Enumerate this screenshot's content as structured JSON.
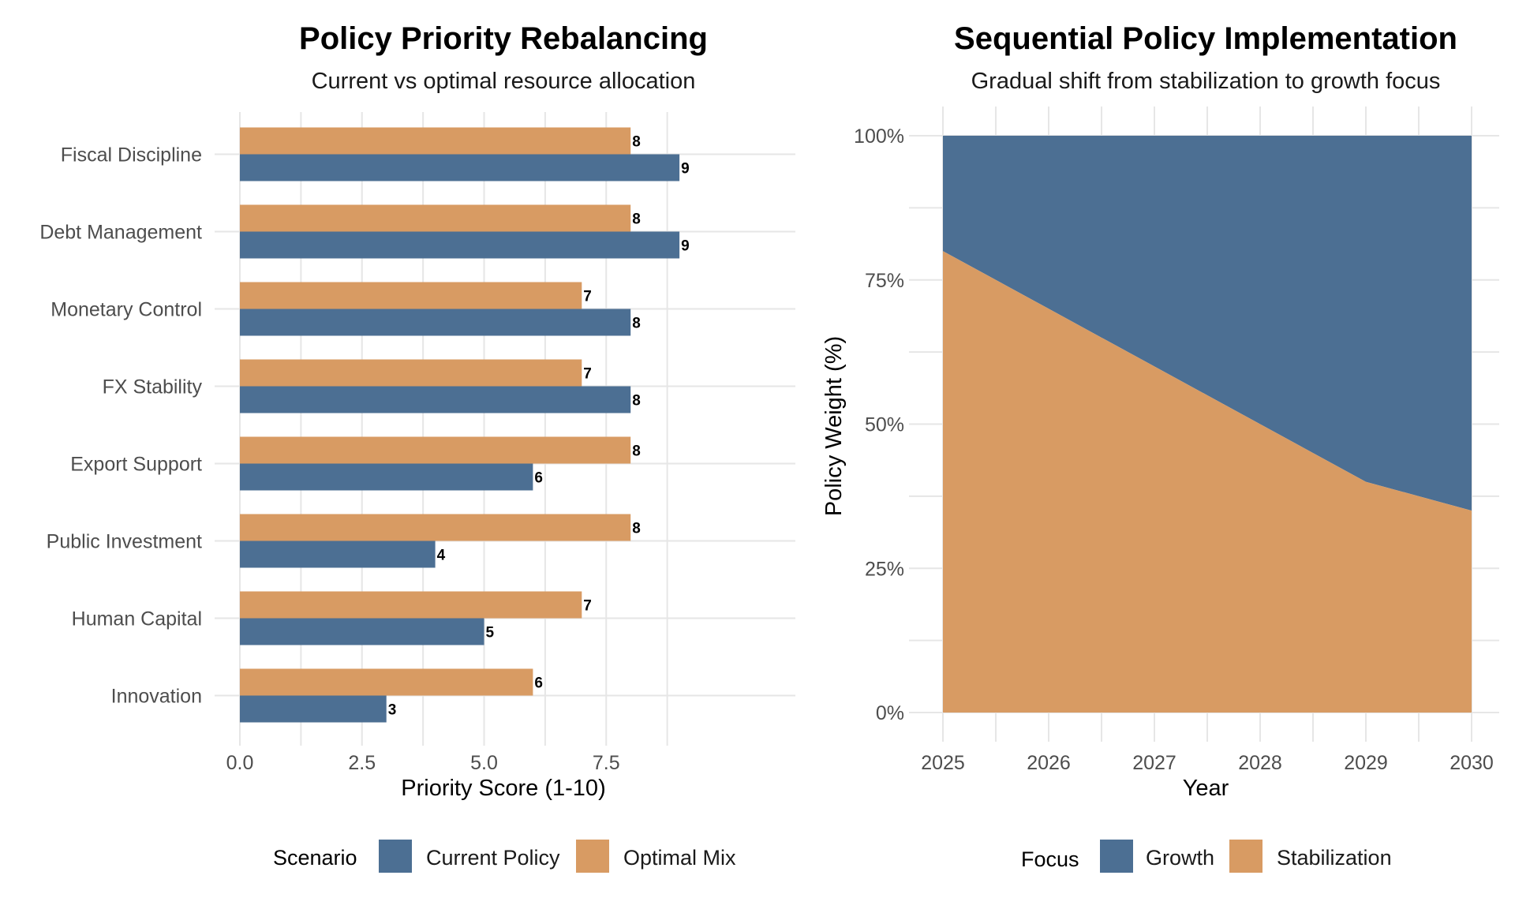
{
  "colors": {
    "current": "#4C6F93",
    "optimal": "#D89B63",
    "growth": "#4C6F93",
    "stabilization": "#D89B63",
    "grid": "#e6e6e6"
  },
  "chart_data": [
    {
      "type": "bar",
      "orientation": "horizontal",
      "title": "Policy Priority Rebalancing",
      "subtitle": "Current vs optimal resource allocation",
      "xlabel": "Priority Score (1-10)",
      "ylabel": "",
      "xlim": [
        0,
        9.5
      ],
      "xticks": [
        0,
        2.5,
        5,
        7.5
      ],
      "xtick_labels": [
        "0.0",
        "2.5",
        "5.0",
        "7.5"
      ],
      "categories": [
        "Fiscal Discipline",
        "Debt Management",
        "Monetary Control",
        "FX Stability",
        "Export Support",
        "Public Investment",
        "Human Capital",
        "Innovation"
      ],
      "series": [
        {
          "name": "Current Policy",
          "color_key": "current",
          "values": [
            9,
            9,
            8,
            8,
            6,
            4,
            5,
            3
          ]
        },
        {
          "name": "Optimal Mix",
          "color_key": "optimal",
          "values": [
            8,
            8,
            7,
            7,
            8,
            8,
            7,
            6
          ]
        }
      ],
      "grid": true,
      "legend": {
        "title": "Scenario",
        "position": "bottom",
        "entries": [
          "Current Policy",
          "Optimal Mix"
        ]
      }
    },
    {
      "type": "area",
      "stacked": true,
      "title": "Sequential Policy Implementation",
      "subtitle": "Gradual shift from stabilization to growth focus",
      "xlabel": "Year",
      "ylabel": "Policy Weight (%)",
      "x": [
        2025,
        2026,
        2027,
        2028,
        2029,
        2030
      ],
      "xtick_labels": [
        "2025",
        "2026",
        "2027",
        "2028",
        "2029",
        "2030"
      ],
      "ylim": [
        0,
        100
      ],
      "yticks": [
        0,
        25,
        50,
        75,
        100
      ],
      "ytick_labels": [
        "0%",
        "25%",
        "50%",
        "75%",
        "100%"
      ],
      "series": [
        {
          "name": "Stabilization",
          "color_key": "stabilization",
          "values": [
            80,
            70,
            60,
            50,
            40,
            35
          ]
        },
        {
          "name": "Growth",
          "color_key": "growth",
          "values": [
            20,
            30,
            40,
            50,
            60,
            65
          ]
        }
      ],
      "grid": true,
      "legend": {
        "title": "Focus",
        "position": "bottom",
        "entries": [
          "Growth",
          "Stabilization"
        ]
      }
    }
  ]
}
